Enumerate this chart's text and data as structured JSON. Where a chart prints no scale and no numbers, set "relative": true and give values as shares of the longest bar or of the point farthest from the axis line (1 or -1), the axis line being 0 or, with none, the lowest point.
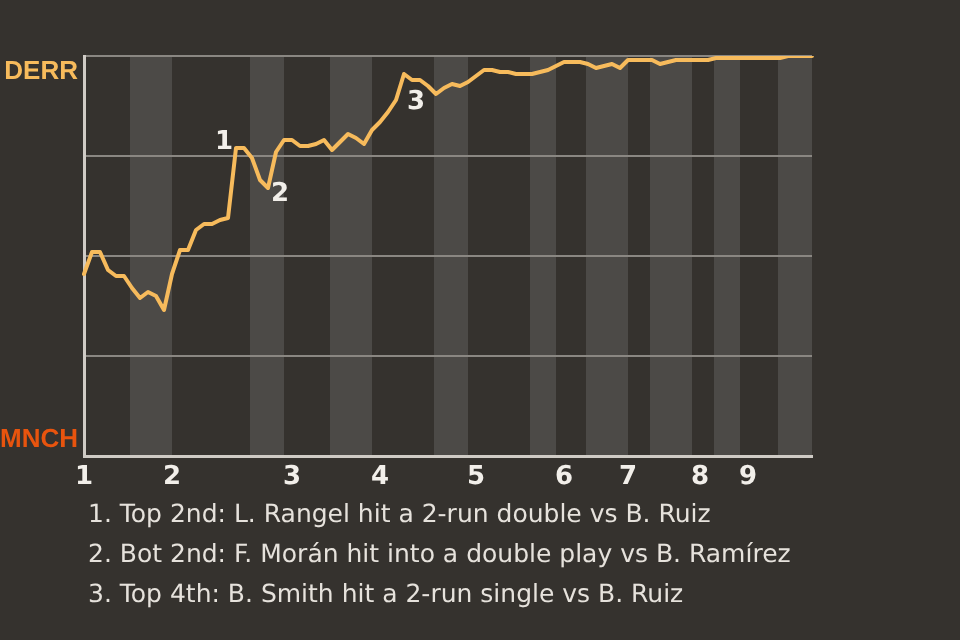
{
  "chart_data": {
    "type": "line",
    "relative": true,
    "categories": [
      "1",
      null,
      null,
      null,
      null,
      null,
      null,
      null,
      null,
      null,
      null,
      "2",
      null,
      null,
      null,
      null,
      null,
      null,
      null,
      null,
      null,
      null,
      null,
      null,
      null,
      null,
      "3",
      null,
      null,
      null,
      null,
      null,
      null,
      null,
      null,
      null,
      null,
      "4",
      null,
      null,
      null,
      null,
      null,
      null,
      null,
      null,
      null,
      null,
      null,
      "5",
      null,
      null,
      null,
      null,
      null,
      null,
      null,
      null,
      null,
      null,
      "6",
      null,
      null,
      null,
      null,
      null,
      null,
      null,
      "7",
      null,
      null,
      null,
      null,
      null,
      null,
      null,
      null,
      "8",
      null,
      null,
      null,
      null,
      null,
      "9",
      null,
      null,
      null,
      null,
      null,
      null,
      null,
      null
    ],
    "series": [
      {
        "color": "#f7bb5c",
        "values": [
          0.455,
          0.51,
          0.51,
          0.465,
          0.45,
          0.45,
          0.42,
          0.395,
          0.41,
          0.4,
          0.365,
          0.455,
          0.515,
          0.515,
          0.565,
          0.58,
          0.58,
          0.59,
          0.595,
          0.77,
          0.77,
          0.745,
          0.69,
          0.67,
          0.76,
          0.79,
          0.79,
          0.775,
          0.775,
          0.78,
          0.79,
          0.765,
          0.785,
          0.805,
          0.795,
          0.78,
          0.815,
          0.835,
          0.86,
          0.89,
          0.955,
          0.94,
          0.94,
          0.925,
          0.905,
          0.92,
          0.93,
          0.925,
          0.935,
          0.95,
          0.965,
          0.965,
          0.96,
          0.96,
          0.955,
          0.955,
          0.955,
          0.96,
          0.965,
          0.975,
          0.985,
          0.985,
          0.985,
          0.98,
          0.97,
          0.975,
          0.98,
          0.97,
          0.99,
          0.99,
          0.99,
          0.99,
          0.98,
          0.985,
          0.99,
          0.99,
          0.99,
          0.99,
          0.99,
          0.995,
          0.995,
          0.995,
          0.995,
          0.995,
          0.995,
          0.995,
          0.995,
          0.995,
          1,
          1,
          1,
          1
        ],
        "line_style": "solid"
      }
    ],
    "grid": "y",
    "marker": "none",
    "annotations": [
      "DERR",
      "MNCH",
      {
        "text": "1",
        "y": 0.77
      },
      {
        "text": "2",
        "y": 0.67
      },
      {
        "text": "3",
        "y": 0.955
      },
      "1. Top 2nd: L. Rangel hit a 2-run double vs B. Ruiz",
      "2. Bot 2nd: F. Morán hit into a double play vs B. Ramírez",
      "3. Top 4th: B. Smith hit a 2-run single vs B. Ruiz"
    ]
  }
}
